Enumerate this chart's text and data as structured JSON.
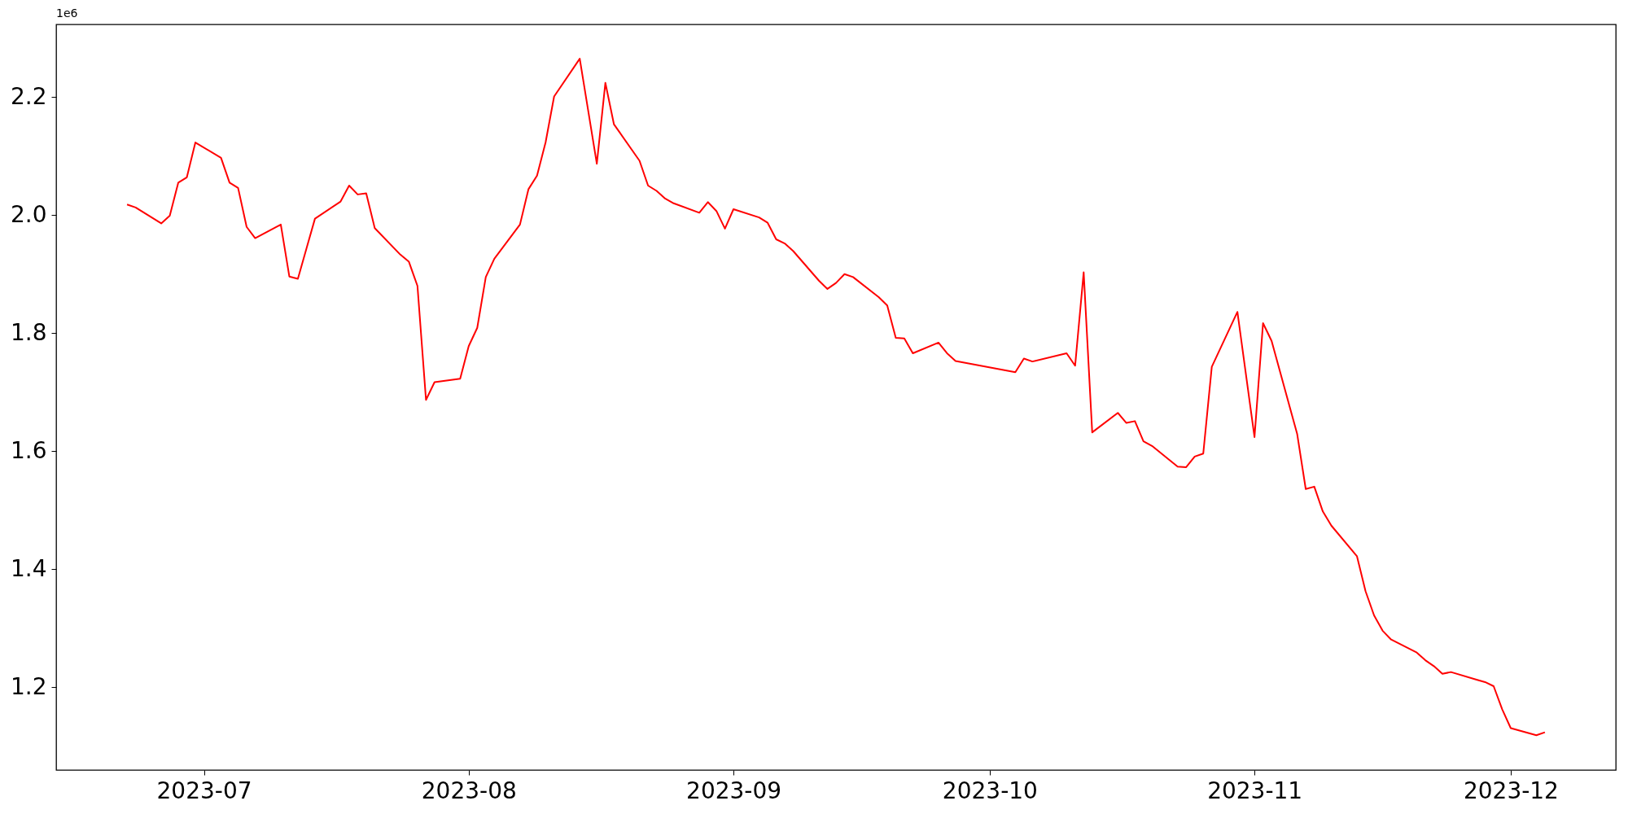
{
  "chart_data": {
    "type": "line",
    "x": [
      "2023-06-22",
      "2023-06-23",
      "2023-06-26",
      "2023-06-27",
      "2023-06-28",
      "2023-06-29",
      "2023-06-30",
      "2023-07-03",
      "2023-07-04",
      "2023-07-05",
      "2023-07-06",
      "2023-07-07",
      "2023-07-10",
      "2023-07-11",
      "2023-07-12",
      "2023-07-13",
      "2023-07-14",
      "2023-07-17",
      "2023-07-18",
      "2023-07-19",
      "2023-07-20",
      "2023-07-21",
      "2023-07-24",
      "2023-07-25",
      "2023-07-26",
      "2023-07-27",
      "2023-07-28",
      "2023-07-31",
      "2023-08-01",
      "2023-08-02",
      "2023-08-03",
      "2023-08-04",
      "2023-08-07",
      "2023-08-08",
      "2023-08-09",
      "2023-08-10",
      "2023-08-11",
      "2023-08-14",
      "2023-08-16",
      "2023-08-17",
      "2023-08-18",
      "2023-08-21",
      "2023-08-22",
      "2023-08-23",
      "2023-08-24",
      "2023-08-25",
      "2023-08-28",
      "2023-08-29",
      "2023-08-30",
      "2023-08-31",
      "2023-09-01",
      "2023-09-04",
      "2023-09-05",
      "2023-09-06",
      "2023-09-07",
      "2023-09-08",
      "2023-09-11",
      "2023-09-12",
      "2023-09-13",
      "2023-09-14",
      "2023-09-15",
      "2023-09-18",
      "2023-09-19",
      "2023-09-20",
      "2023-09-21",
      "2023-09-22",
      "2023-09-25",
      "2023-09-26",
      "2023-09-27",
      "2023-10-04",
      "2023-10-05",
      "2023-10-06",
      "2023-10-10",
      "2023-10-11",
      "2023-10-12",
      "2023-10-13",
      "2023-10-16",
      "2023-10-17",
      "2023-10-18",
      "2023-10-19",
      "2023-10-20",
      "2023-10-23",
      "2023-10-24",
      "2023-10-25",
      "2023-10-26",
      "2023-10-27",
      "2023-10-30",
      "2023-11-01",
      "2023-11-02",
      "2023-11-03",
      "2023-11-06",
      "2023-11-07",
      "2023-11-08",
      "2023-11-09",
      "2023-11-10",
      "2023-11-13",
      "2023-11-14",
      "2023-11-15",
      "2023-11-16",
      "2023-11-17",
      "2023-11-20",
      "2023-11-21",
      "2023-11-22",
      "2023-11-23",
      "2023-11-24",
      "2023-11-27",
      "2023-11-28",
      "2023-11-29",
      "2023-11-30",
      "2023-12-01",
      "2023-12-04",
      "2023-12-05"
    ],
    "values": [
      2.018,
      2.013,
      1.986,
      1.999,
      2.055,
      2.064,
      2.123,
      2.097,
      2.055,
      2.046,
      1.98,
      1.961,
      1.984,
      1.896,
      1.892,
      1.943,
      1.994,
      2.023,
      2.05,
      2.035,
      2.037,
      1.978,
      1.933,
      1.921,
      1.88,
      1.687,
      1.717,
      1.723,
      1.778,
      1.809,
      1.895,
      1.926,
      1.984,
      2.044,
      2.067,
      2.123,
      2.201,
      2.265,
      2.087,
      2.224,
      2.154,
      2.092,
      2.05,
      2.041,
      2.028,
      2.02,
      2.004,
      2.022,
      2.007,
      1.977,
      2.01,
      1.996,
      1.987,
      1.959,
      1.952,
      1.939,
      1.889,
      1.875,
      1.885,
      1.9,
      1.895,
      1.861,
      1.847,
      1.792,
      1.791,
      1.766,
      1.784,
      1.766,
      1.753,
      1.734,
      1.757,
      1.752,
      1.766,
      1.745,
      1.903,
      1.632,
      1.665,
      1.648,
      1.651,
      1.617,
      1.609,
      1.574,
      1.573,
      1.591,
      1.596,
      1.743,
      1.836,
      1.624,
      1.817,
      1.787,
      1.629,
      1.536,
      1.54,
      1.498,
      1.474,
      1.422,
      1.363,
      1.322,
      1.296,
      1.281,
      1.259,
      1.246,
      1.236,
      1.223,
      1.226,
      1.213,
      1.209,
      1.202,
      1.163,
      1.131,
      1.119,
      1.124
    ],
    "color": "#ff0000",
    "xlim": [
      "2023-06-13T16:48",
      "2023-12-13T07:12"
    ],
    "xticks": [
      {
        "value": "2023-07-01",
        "label": "2023-07"
      },
      {
        "value": "2023-08-01",
        "label": "2023-08"
      },
      {
        "value": "2023-09-01",
        "label": "2023-09"
      },
      {
        "value": "2023-10-01",
        "label": "2023-10"
      },
      {
        "value": "2023-11-01",
        "label": "2023-11"
      },
      {
        "value": "2023-12-01",
        "label": "2023-12"
      }
    ],
    "ylim": [
      1.06,
      2.323
    ],
    "yticks": [
      1.2,
      1.4,
      1.6,
      1.8,
      {
        "value": 2.0,
        "label": "2.0"
      },
      2.2
    ],
    "grid": false,
    "annotations": [
      "1e6"
    ]
  }
}
